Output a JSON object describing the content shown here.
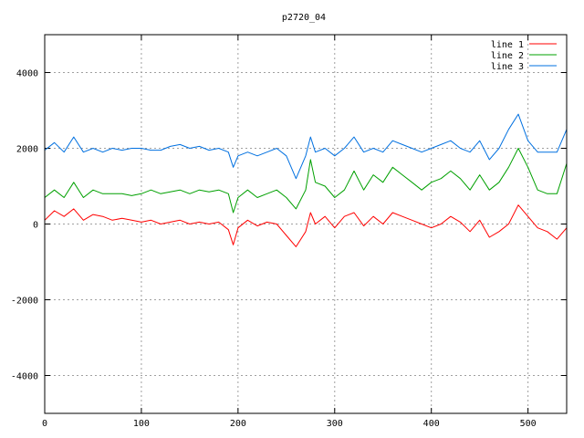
{
  "chart_data": {
    "type": "line",
    "title": "p2720_04",
    "xlabel": "",
    "ylabel": "",
    "xlim": [
      0,
      540
    ],
    "ylim": [
      -5000,
      5000
    ],
    "xticks": [
      0,
      100,
      200,
      300,
      400,
      500
    ],
    "yticks": [
      -4000,
      -2000,
      0,
      2000,
      4000
    ],
    "grid": true,
    "legend_position": "top-right",
    "series": [
      {
        "name": "line 1",
        "color": "#ff0000",
        "x": [
          0,
          10,
          20,
          30,
          40,
          50,
          60,
          70,
          80,
          90,
          100,
          110,
          120,
          130,
          140,
          150,
          160,
          170,
          180,
          190,
          195,
          200,
          210,
          220,
          230,
          240,
          250,
          260,
          270,
          275,
          280,
          290,
          300,
          310,
          320,
          330,
          340,
          350,
          360,
          370,
          380,
          390,
          400,
          410,
          420,
          430,
          440,
          450,
          460,
          470,
          480,
          490,
          500,
          510,
          520,
          530,
          540
        ],
        "values": [
          100,
          350,
          200,
          400,
          100,
          250,
          200,
          100,
          150,
          100,
          50,
          100,
          0,
          50,
          100,
          0,
          50,
          0,
          50,
          -150,
          -550,
          -100,
          100,
          -50,
          50,
          0,
          -300,
          -600,
          -200,
          300,
          0,
          200,
          -100,
          200,
          300,
          -50,
          200,
          0,
          300,
          200,
          100,
          0,
          -100,
          0,
          200,
          50,
          -200,
          100,
          -350,
          -200,
          0,
          500,
          200,
          -100,
          -200,
          -400,
          -100
        ]
      },
      {
        "name": "line 2",
        "color": "#00a000",
        "x": [
          0,
          10,
          20,
          30,
          40,
          50,
          60,
          70,
          80,
          90,
          100,
          110,
          120,
          130,
          140,
          150,
          160,
          170,
          180,
          190,
          195,
          200,
          210,
          220,
          230,
          240,
          250,
          260,
          270,
          275,
          280,
          290,
          300,
          310,
          320,
          330,
          340,
          350,
          360,
          370,
          380,
          390,
          400,
          410,
          420,
          430,
          440,
          450,
          460,
          470,
          480,
          490,
          500,
          510,
          520,
          530,
          540
        ],
        "values": [
          700,
          900,
          700,
          1100,
          700,
          900,
          800,
          800,
          800,
          750,
          800,
          900,
          800,
          850,
          900,
          800,
          900,
          850,
          900,
          800,
          300,
          700,
          900,
          700,
          800,
          900,
          700,
          400,
          900,
          1700,
          1100,
          1000,
          700,
          900,
          1400,
          900,
          1300,
          1100,
          1500,
          1300,
          1100,
          900,
          1100,
          1200,
          1400,
          1200,
          900,
          1300,
          900,
          1100,
          1500,
          2000,
          1500,
          900,
          800,
          800,
          1600
        ]
      },
      {
        "name": "line 3",
        "color": "#0070e0",
        "x": [
          0,
          10,
          20,
          30,
          40,
          50,
          60,
          70,
          80,
          90,
          100,
          110,
          120,
          130,
          140,
          150,
          160,
          170,
          180,
          190,
          195,
          200,
          210,
          220,
          230,
          240,
          250,
          260,
          270,
          275,
          280,
          290,
          300,
          310,
          320,
          330,
          340,
          350,
          360,
          370,
          380,
          390,
          400,
          410,
          420,
          430,
          440,
          450,
          460,
          470,
          480,
          490,
          500,
          510,
          520,
          530,
          540
        ],
        "values": [
          1950,
          2150,
          1900,
          2300,
          1900,
          2000,
          1900,
          2000,
          1950,
          2000,
          2000,
          1950,
          1950,
          2050,
          2100,
          2000,
          2050,
          1950,
          2000,
          1900,
          1500,
          1800,
          1900,
          1800,
          1900,
          2000,
          1800,
          1200,
          1800,
          2300,
          1900,
          2000,
          1800,
          2000,
          2300,
          1900,
          2000,
          1900,
          2200,
          2100,
          2000,
          1900,
          2000,
          2100,
          2200,
          2000,
          1900,
          2200,
          1700,
          2000,
          2500,
          2900,
          2200,
          1900,
          1900,
          1900,
          2500
        ]
      }
    ]
  }
}
